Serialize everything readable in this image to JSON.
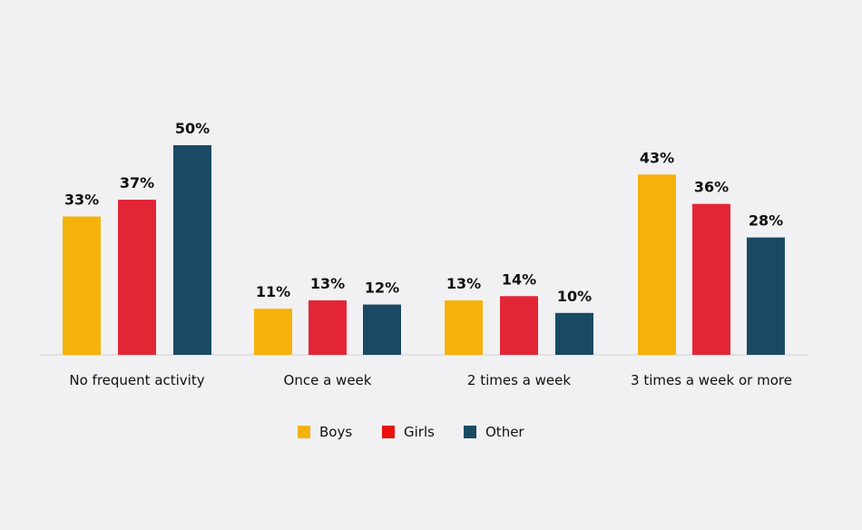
{
  "chart_data": {
    "type": "bar",
    "categories": [
      "No frequent activity",
      "Once a week",
      "2 times a week",
      "3 times a week or more"
    ],
    "series": [
      {
        "name": "Boys",
        "values": [
          33,
          11,
          13,
          43
        ],
        "color": "#F5B20A",
        "legend_color": "#F5B20A"
      },
      {
        "name": "Girls",
        "values": [
          37,
          13,
          14,
          36
        ],
        "color": "#E32636",
        "legend_color": "#E8120C"
      },
      {
        "name": "Other",
        "values": [
          50,
          12,
          10,
          28
        ],
        "color": "#1A4A63",
        "legend_color": "#1A4A63"
      }
    ],
    "value_format": "percent",
    "ylim": [
      0,
      50
    ],
    "grid": false,
    "legend_position": "bottom"
  }
}
